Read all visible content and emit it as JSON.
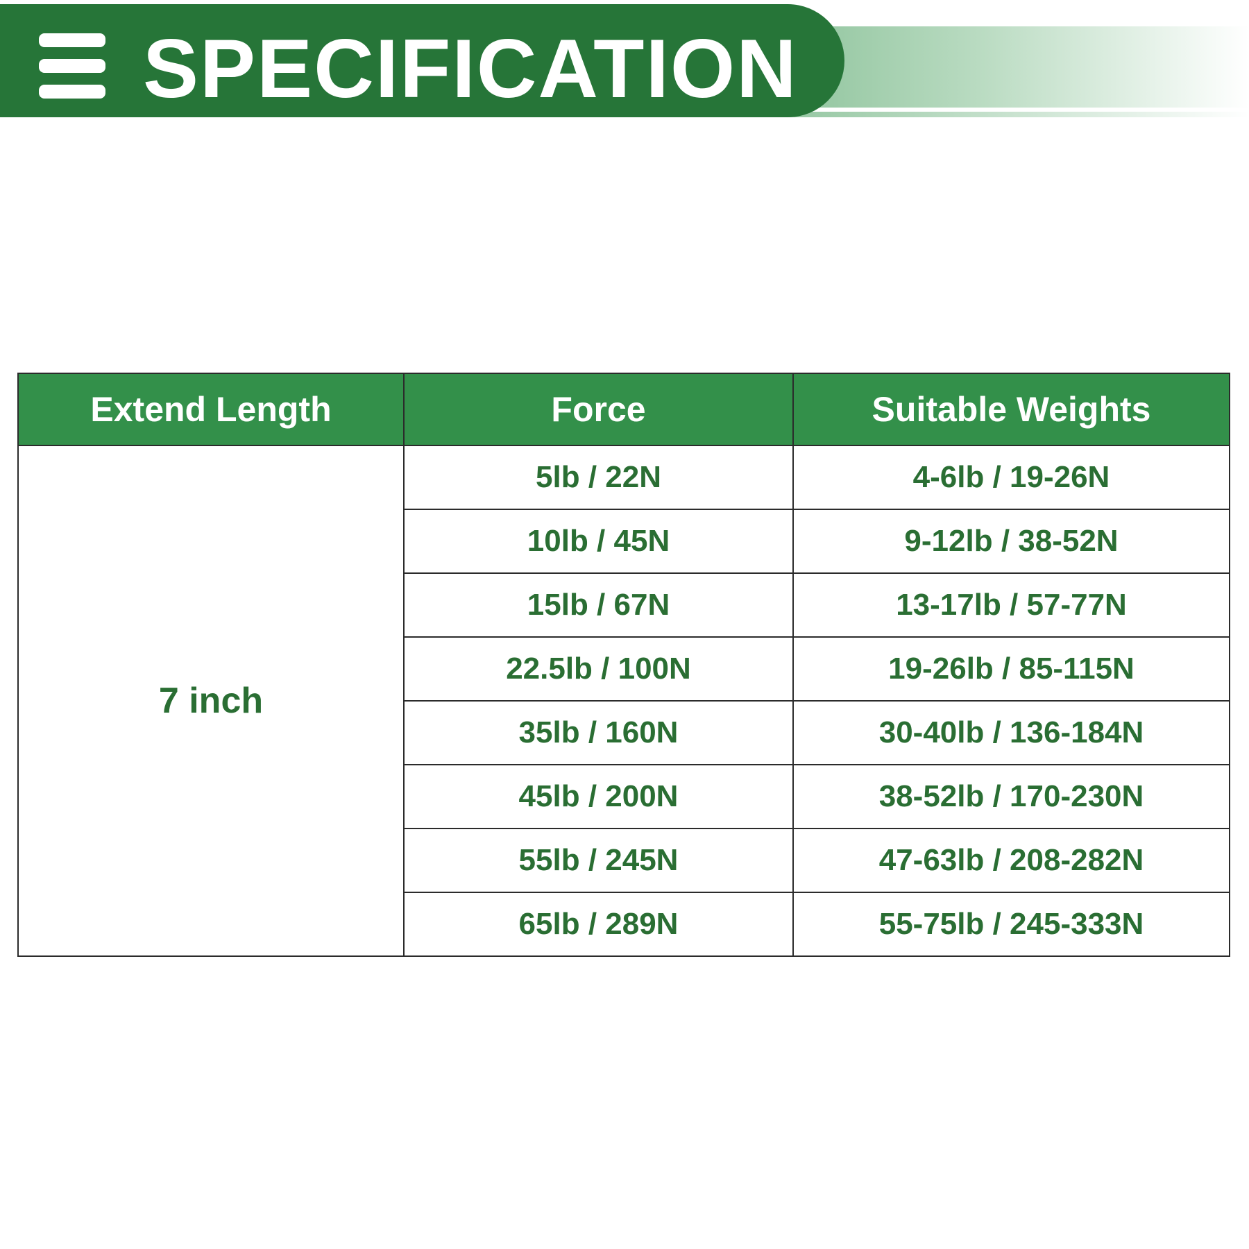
{
  "header": {
    "title": "SPECIFICATION",
    "icon": "menu-icon",
    "colors": {
      "banner": "#267538",
      "table_header": "#33904a",
      "text": "#2a6e33"
    }
  },
  "table": {
    "columns": [
      "Extend Length",
      "Force",
      "Suitable Weights"
    ],
    "extend_length": "7 inch",
    "rows": [
      {
        "force": "5lb / 22N",
        "weights": "4-6lb / 19-26N"
      },
      {
        "force": "10lb / 45N",
        "weights": "9-12lb / 38-52N"
      },
      {
        "force": "15lb / 67N",
        "weights": "13-17lb / 57-77N"
      },
      {
        "force": "22.5lb / 100N",
        "weights": "19-26lb / 85-115N"
      },
      {
        "force": "35lb / 160N",
        "weights": "30-40lb / 136-184N"
      },
      {
        "force": "45lb / 200N",
        "weights": "38-52lb / 170-230N"
      },
      {
        "force": "55lb / 245N",
        "weights": "47-63lb / 208-282N"
      },
      {
        "force": "65lb / 289N",
        "weights": "55-75lb / 245-333N"
      }
    ]
  }
}
